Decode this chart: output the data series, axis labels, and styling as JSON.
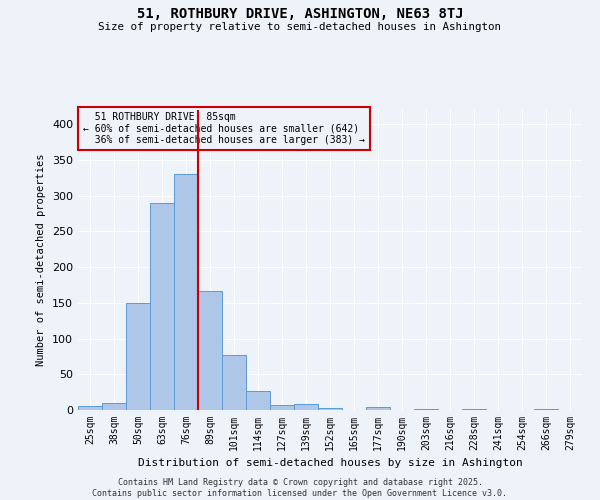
{
  "title": "51, ROTHBURY DRIVE, ASHINGTON, NE63 8TJ",
  "subtitle": "Size of property relative to semi-detached houses in Ashington",
  "xlabel": "Distribution of semi-detached houses by size in Ashington",
  "ylabel": "Number of semi-detached properties",
  "bar_labels": [
    "25sqm",
    "38sqm",
    "50sqm",
    "63sqm",
    "76sqm",
    "89sqm",
    "101sqm",
    "114sqm",
    "127sqm",
    "139sqm",
    "152sqm",
    "165sqm",
    "177sqm",
    "190sqm",
    "203sqm",
    "216sqm",
    "228sqm",
    "241sqm",
    "254sqm",
    "266sqm",
    "279sqm"
  ],
  "bar_values": [
    5,
    10,
    150,
    290,
    330,
    167,
    77,
    26,
    7,
    9,
    3,
    0,
    4,
    0,
    2,
    0,
    1,
    0,
    0,
    2,
    0
  ],
  "bar_color": "#aec6e8",
  "bar_edge_color": "#5b9bd5",
  "property_label": "51 ROTHBURY DRIVE: 85sqm",
  "pct_smaller": 60,
  "count_smaller": 642,
  "pct_larger": 36,
  "count_larger": 383,
  "vline_color": "#cc0000",
  "box_edge_color": "#cc0000",
  "background_color": "#eef2f9",
  "grid_color": "#ffffff",
  "footer": "Contains HM Land Registry data © Crown copyright and database right 2025.\nContains public sector information licensed under the Open Government Licence v3.0.",
  "ylim": [
    0,
    420
  ],
  "vline_bar_index": 4
}
